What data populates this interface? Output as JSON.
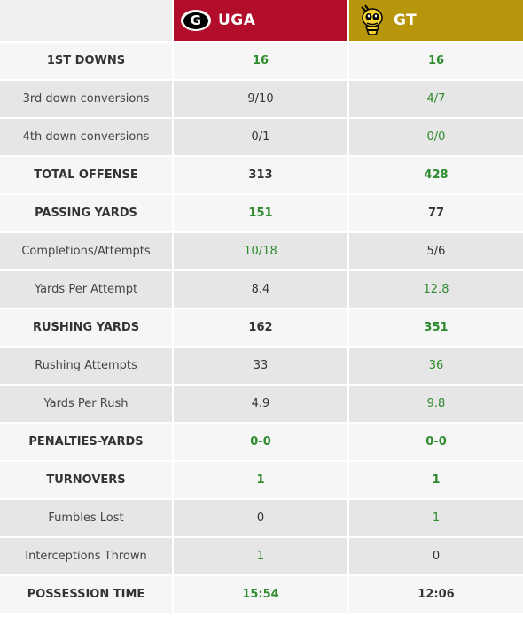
{
  "teams": {
    "a": {
      "name": "UGA",
      "color": "#b30d2c",
      "logo_icon": "georgia-g-logo-icon"
    },
    "b": {
      "name": "GT",
      "color": "#b8960c",
      "logo_icon": "yellow-jacket-logo-icon"
    }
  },
  "highlight_color": "#2e8b2e",
  "rows": [
    {
      "label": "1ST DOWNS",
      "type": "major",
      "a": "16",
      "b": "16",
      "a_hl": true,
      "b_hl": true
    },
    {
      "label": "3rd down conversions",
      "type": "minor",
      "a": "9/10",
      "b": "4/7",
      "a_hl": false,
      "b_hl": true
    },
    {
      "label": "4th down conversions",
      "type": "minor",
      "a": "0/1",
      "b": "0/0",
      "a_hl": false,
      "b_hl": true
    },
    {
      "label": "TOTAL OFFENSE",
      "type": "major",
      "a": "313",
      "b": "428",
      "a_hl": false,
      "b_hl": true
    },
    {
      "label": "PASSING YARDS",
      "type": "major",
      "a": "151",
      "b": "77",
      "a_hl": true,
      "b_hl": false
    },
    {
      "label": "Completions/Attempts",
      "type": "minor",
      "a": "10/18",
      "b": "5/6",
      "a_hl": true,
      "b_hl": false
    },
    {
      "label": "Yards Per Attempt",
      "type": "minor",
      "a": "8.4",
      "b": "12.8",
      "a_hl": false,
      "b_hl": true
    },
    {
      "label": "RUSHING YARDS",
      "type": "major",
      "a": "162",
      "b": "351",
      "a_hl": false,
      "b_hl": true
    },
    {
      "label": "Rushing Attempts",
      "type": "minor",
      "a": "33",
      "b": "36",
      "a_hl": false,
      "b_hl": true
    },
    {
      "label": "Yards Per Rush",
      "type": "minor",
      "a": "4.9",
      "b": "9.8",
      "a_hl": false,
      "b_hl": true
    },
    {
      "label": "PENALTIES-YARDS",
      "type": "major",
      "a": "0-0",
      "b": "0-0",
      "a_hl": true,
      "b_hl": true
    },
    {
      "label": "TURNOVERS",
      "type": "major",
      "a": "1",
      "b": "1",
      "a_hl": true,
      "b_hl": true
    },
    {
      "label": "Fumbles Lost",
      "type": "minor",
      "a": "0",
      "b": "1",
      "a_hl": false,
      "b_hl": true
    },
    {
      "label": "Interceptions Thrown",
      "type": "minor",
      "a": "1",
      "b": "0",
      "a_hl": true,
      "b_hl": false
    },
    {
      "label": "POSSESSION TIME",
      "type": "major",
      "a": "15:54",
      "b": "12:06",
      "a_hl": true,
      "b_hl": false
    }
  ]
}
